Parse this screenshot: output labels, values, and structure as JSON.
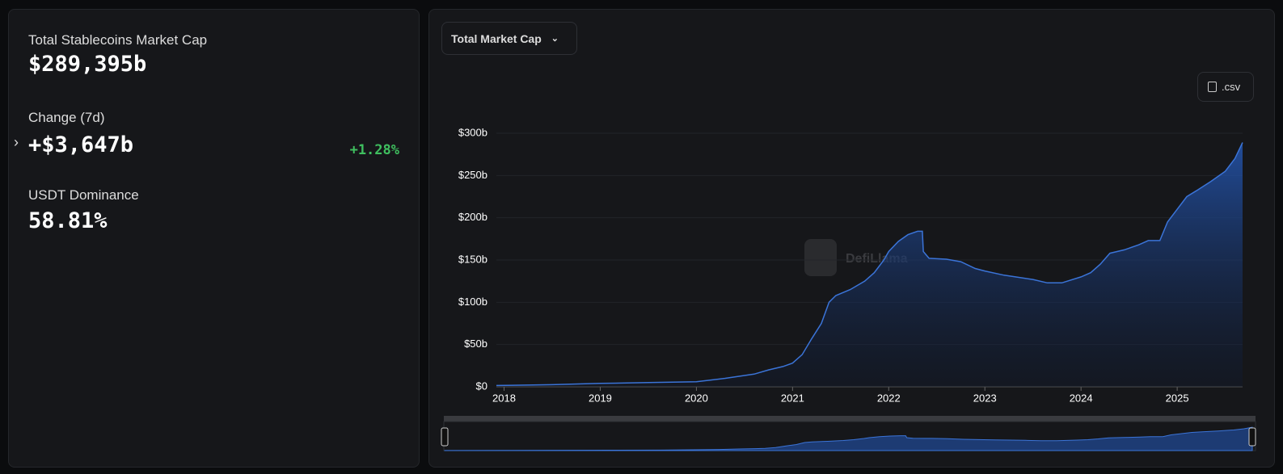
{
  "stats": [
    {
      "label": "Total Stablecoins Market Cap",
      "value": "$289,395b"
    },
    {
      "label": "Change (7d)",
      "value": "+$3,647b",
      "change": "+1.28%"
    },
    {
      "label": "USDT Dominance",
      "value": "58.81%"
    }
  ],
  "dropdown": "Total Market Cap",
  "csv_button": ".csv",
  "watermark": "DefiLlama",
  "chart_data": {
    "type": "area",
    "color": "#3b74d8",
    "x": [
      2017.92,
      2018.5,
      2019.0,
      2019.5,
      2020.0,
      2020.3,
      2020.6,
      2020.75,
      2020.9,
      2021.0,
      2021.1,
      2021.2,
      2021.3,
      2021.38,
      2021.45,
      2021.6,
      2021.75,
      2021.85,
      2021.95,
      2022.0,
      2022.1,
      2022.2,
      2022.3,
      2022.35,
      2022.36,
      2022.42,
      2022.6,
      2022.75,
      2022.9,
      2023.0,
      2023.2,
      2023.5,
      2023.65,
      2023.8,
      2024.0,
      2024.1,
      2024.2,
      2024.3,
      2024.45,
      2024.6,
      2024.7,
      2024.82,
      2024.9,
      2025.0,
      2025.1,
      2025.2,
      2025.35,
      2025.5,
      2025.6,
      2025.68
    ],
    "values": [
      1.5,
      2.5,
      4,
      5,
      6,
      10,
      15,
      20,
      24,
      28,
      38,
      57,
      75,
      100,
      108,
      115,
      125,
      135,
      150,
      160,
      172,
      180,
      184,
      184,
      160,
      152,
      151,
      148,
      140,
      137,
      132,
      127,
      123,
      123,
      130,
      135,
      145,
      158,
      162,
      168,
      173,
      173,
      195,
      210,
      225,
      232,
      243,
      255,
      270,
      289
    ],
    "xlim": [
      2017.92,
      2025.68
    ],
    "xticks": [
      2018,
      2019,
      2020,
      2021,
      2022,
      2023,
      2024,
      2025
    ],
    "ylim": [
      0,
      300
    ],
    "yticks": [
      {
        "value": 0,
        "label": "$0"
      },
      {
        "value": 50,
        "label": "$50b"
      },
      {
        "value": 100,
        "label": "$100b"
      },
      {
        "value": 150,
        "label": "$150b"
      },
      {
        "value": 200,
        "label": "$200b"
      },
      {
        "value": 250,
        "label": "$250b"
      },
      {
        "value": 300,
        "label": "$300b"
      }
    ],
    "grid": true
  }
}
